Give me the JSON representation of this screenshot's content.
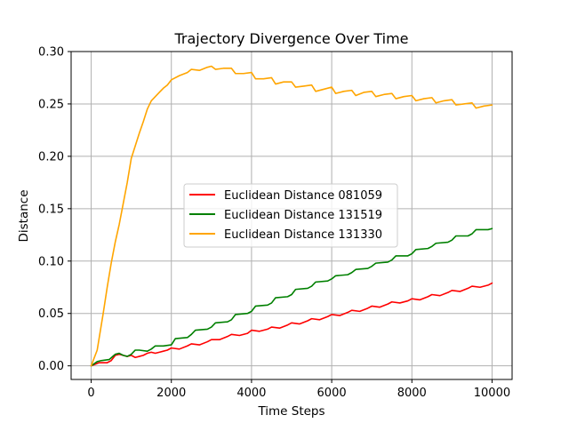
{
  "chart_data": {
    "type": "line",
    "title": "Trajectory Divergence Over Time",
    "xlabel": "Time Steps",
    "ylabel": "Distance",
    "xlim": [
      -500,
      10500
    ],
    "ylim": [
      -0.013,
      0.3
    ],
    "x_ticks": [
      0,
      2000,
      4000,
      6000,
      8000,
      10000
    ],
    "x_tick_labels": [
      "0",
      "2000",
      "4000",
      "6000",
      "8000",
      "10000"
    ],
    "y_ticks": [
      0.0,
      0.05,
      0.1,
      0.15,
      0.2,
      0.25,
      0.3
    ],
    "y_tick_labels": [
      "0.00",
      "0.05",
      "0.10",
      "0.15",
      "0.20",
      "0.25",
      "0.30"
    ],
    "grid": true,
    "legend_position": "center-right",
    "series": [
      {
        "name": "Euclidean Distance 081059",
        "color": "#ff0000",
        "x": [
          0,
          200,
          400,
          500,
          600,
          700,
          800,
          900,
          1000,
          1100,
          1200,
          1300,
          1400,
          1500,
          1600,
          1700,
          1800,
          1900,
          2000,
          2200,
          2400,
          2500,
          2700,
          2900,
          3000,
          3200,
          3400,
          3500,
          3700,
          3900,
          4000,
          4200,
          4400,
          4500,
          4700,
          4900,
          5000,
          5200,
          5400,
          5500,
          5700,
          5900,
          6000,
          6200,
          6400,
          6500,
          6700,
          6900,
          7000,
          7200,
          7400,
          7500,
          7700,
          7900,
          8000,
          8200,
          8400,
          8500,
          8700,
          8900,
          9000,
          9200,
          9400,
          9500,
          9700,
          9900,
          10000
        ],
        "values": [
          0.0,
          0.003,
          0.003,
          0.005,
          0.01,
          0.011,
          0.01,
          0.009,
          0.01,
          0.008,
          0.009,
          0.01,
          0.012,
          0.013,
          0.012,
          0.013,
          0.014,
          0.015,
          0.017,
          0.016,
          0.019,
          0.021,
          0.02,
          0.023,
          0.025,
          0.025,
          0.028,
          0.03,
          0.029,
          0.031,
          0.034,
          0.033,
          0.035,
          0.037,
          0.036,
          0.039,
          0.041,
          0.04,
          0.043,
          0.045,
          0.044,
          0.047,
          0.049,
          0.048,
          0.051,
          0.053,
          0.052,
          0.055,
          0.057,
          0.056,
          0.059,
          0.061,
          0.06,
          0.062,
          0.064,
          0.063,
          0.066,
          0.068,
          0.067,
          0.07,
          0.072,
          0.071,
          0.074,
          0.076,
          0.075,
          0.077,
          0.079
        ]
      },
      {
        "name": "Euclidean Distance 131519",
        "color": "#008000",
        "x": [
          0,
          150,
          250,
          450,
          600,
          700,
          800,
          900,
          1000,
          1100,
          1200,
          1400,
          1500,
          1600,
          1800,
          2000,
          2100,
          2400,
          2500,
          2600,
          2900,
          3000,
          3100,
          3400,
          3500,
          3600,
          3900,
          4000,
          4100,
          4400,
          4500,
          4600,
          4900,
          5000,
          5100,
          5400,
          5500,
          5600,
          5900,
          6000,
          6100,
          6400,
          6500,
          6600,
          6900,
          7000,
          7100,
          7400,
          7500,
          7600,
          7900,
          8000,
          8100,
          8400,
          8500,
          8600,
          8900,
          9000,
          9100,
          9400,
          9500,
          9600,
          9900,
          10000
        ],
        "values": [
          0.0,
          0.004,
          0.005,
          0.006,
          0.011,
          0.012,
          0.01,
          0.009,
          0.011,
          0.015,
          0.015,
          0.014,
          0.016,
          0.019,
          0.019,
          0.02,
          0.026,
          0.027,
          0.03,
          0.034,
          0.035,
          0.037,
          0.041,
          0.042,
          0.044,
          0.049,
          0.05,
          0.052,
          0.057,
          0.058,
          0.06,
          0.065,
          0.066,
          0.068,
          0.073,
          0.074,
          0.076,
          0.08,
          0.081,
          0.083,
          0.086,
          0.087,
          0.089,
          0.092,
          0.093,
          0.095,
          0.098,
          0.099,
          0.101,
          0.105,
          0.105,
          0.107,
          0.111,
          0.112,
          0.114,
          0.117,
          0.118,
          0.12,
          0.124,
          0.124,
          0.126,
          0.13,
          0.13,
          0.131
        ]
      },
      {
        "name": "Euclidean Distance 131330",
        "color": "#ffa500",
        "x": [
          0,
          150,
          300,
          400,
          500,
          600,
          700,
          800,
          900,
          1000,
          1100,
          1200,
          1300,
          1400,
          1500,
          1600,
          1700,
          1800,
          1900,
          2000,
          2200,
          2400,
          2500,
          2700,
          2900,
          3000,
          3100,
          3300,
          3500,
          3600,
          3800,
          4000,
          4100,
          4300,
          4500,
          4600,
          4800,
          5000,
          5100,
          5300,
          5500,
          5600,
          5800,
          6000,
          6100,
          6300,
          6500,
          6600,
          6800,
          7000,
          7100,
          7300,
          7500,
          7600,
          7800,
          8000,
          8100,
          8300,
          8500,
          8600,
          8800,
          9000,
          9100,
          9300,
          9500,
          9600,
          9800,
          10000
        ],
        "values": [
          0.0,
          0.015,
          0.05,
          0.075,
          0.098,
          0.118,
          0.135,
          0.155,
          0.175,
          0.198,
          0.21,
          0.222,
          0.233,
          0.245,
          0.253,
          0.257,
          0.261,
          0.265,
          0.268,
          0.273,
          0.277,
          0.28,
          0.283,
          0.282,
          0.285,
          0.286,
          0.283,
          0.284,
          0.284,
          0.279,
          0.279,
          0.28,
          0.274,
          0.274,
          0.275,
          0.269,
          0.271,
          0.271,
          0.266,
          0.267,
          0.268,
          0.262,
          0.264,
          0.266,
          0.26,
          0.262,
          0.263,
          0.258,
          0.261,
          0.262,
          0.257,
          0.259,
          0.26,
          0.255,
          0.257,
          0.258,
          0.253,
          0.255,
          0.256,
          0.251,
          0.253,
          0.254,
          0.249,
          0.25,
          0.251,
          0.246,
          0.248,
          0.249
        ]
      }
    ]
  }
}
